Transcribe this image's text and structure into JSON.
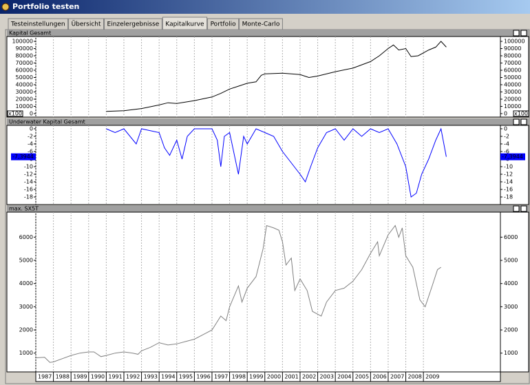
{
  "window": {
    "title": "Portfolio testen"
  },
  "tabs": [
    "Testeinstellungen",
    "Übersicht",
    "Einzelergebnisse",
    "Kapitalkurve",
    "Portfolio",
    "Monte-Carlo"
  ],
  "active_tab": 3,
  "chart_data": [
    {
      "type": "line",
      "title": "Kapital Gesamt",
      "scale_note": "x100",
      "color": "#000000",
      "xlim": [
        1987,
        2013.37
      ],
      "ylim": [
        -4800,
        106700
      ],
      "yticks": [
        0,
        10000,
        20000,
        30000,
        40000,
        50000,
        60000,
        70000,
        80000,
        90000,
        100000
      ],
      "x": [
        1991,
        1992,
        1993,
        1994,
        1994.5,
        1995,
        1996,
        1997,
        1997.5,
        1998,
        1998.5,
        1999,
        1999.5,
        1999.8,
        2000,
        2001,
        2002,
        2002.5,
        2003,
        2004,
        2005,
        2006,
        2006.5,
        2007,
        2007.3,
        2007.6,
        2008,
        2008.3,
        2008.7,
        2009.3,
        2009.7,
        2010,
        2010.3
      ],
      "values": [
        3000,
        4000,
        7000,
        12000,
        15000,
        14000,
        18000,
        23000,
        28000,
        34000,
        38000,
        42000,
        44000,
        53000,
        55000,
        56000,
        54000,
        50000,
        52000,
        58000,
        63000,
        72000,
        80000,
        90000,
        95000,
        88000,
        90000,
        79000,
        80000,
        88000,
        92000,
        100000,
        92000
      ]
    },
    {
      "type": "line",
      "title": "Underwater Kapital Gesamt",
      "color": "#0000ff",
      "marker_value": -7.3944,
      "marker_label": "-7,3944",
      "xlim": [
        1987,
        2013.37
      ],
      "ylim": [
        -20,
        0.9
      ],
      "yticks": [
        0,
        -2,
        -4,
        -6,
        -8,
        -10,
        -12,
        -14,
        -16,
        -18
      ],
      "x": [
        1991,
        1991.5,
        1992,
        1992.7,
        1993,
        1994,
        1994.3,
        1994.6,
        1995,
        1995.3,
        1995.6,
        1996,
        1997,
        1997.3,
        1997.5,
        1997.7,
        1998,
        1998.5,
        1998.8,
        1999,
        1999.5,
        2000,
        2000.5,
        2001,
        2001.5,
        2002,
        2002.3,
        2002.6,
        2003,
        2003.5,
        2004,
        2004.5,
        2005,
        2005.5,
        2006,
        2006.5,
        2007,
        2007.5,
        2008,
        2008.3,
        2008.6,
        2008.9,
        2009.3,
        2009.7,
        2010,
        2010.3
      ],
      "values": [
        0,
        -1,
        0,
        -4,
        0,
        -1,
        -5,
        -7,
        -3,
        -8,
        -2,
        0,
        0,
        -3,
        -10,
        -2,
        -1,
        -12,
        -2,
        -4,
        0,
        -1,
        -2,
        -6,
        -9,
        -12,
        -14,
        -10,
        -5,
        -1,
        0,
        -3,
        0,
        -2,
        0,
        -1,
        0,
        -4,
        -10,
        -18,
        -17,
        -12,
        -8,
        -3,
        0,
        -7.3944
      ]
    },
    {
      "type": "line",
      "title": "max. SX5T",
      "color": "#808080",
      "xlim": [
        1987,
        2013.37
      ],
      "ylim": [
        190,
        7080
      ],
      "yticks": [
        1000,
        2000,
        3000,
        4000,
        5000,
        6000
      ],
      "xticks": [
        1987,
        1988,
        1989,
        1990,
        1991,
        1992,
        1993,
        1994,
        1995,
        1996,
        1997,
        1998,
        1999,
        2000,
        2001,
        2002,
        2003,
        2004,
        2005,
        2006,
        2007,
        2008,
        2009
      ],
      "x": [
        1987,
        1987.5,
        1987.8,
        1988,
        1988.5,
        1989,
        1989.5,
        1990,
        1990.3,
        1990.7,
        1991,
        1991.5,
        1992,
        1992.5,
        1992.8,
        1993,
        1993.5,
        1994,
        1994.5,
        1995,
        1995.5,
        1996,
        1996.5,
        1997,
        1997.5,
        1997.8,
        1998,
        1998.5,
        1998.7,
        1999,
        1999.5,
        1999.9,
        2000.1,
        2000.5,
        2000.8,
        2001,
        2001.2,
        2001.5,
        2001.7,
        2002,
        2002.4,
        2002.7,
        2003.2,
        2003.5,
        2004,
        2004.5,
        2005,
        2005.5,
        2006,
        2006.4,
        2006.5,
        2007,
        2007.4,
        2007.6,
        2007.8,
        2008,
        2008.4,
        2008.8,
        2009.1,
        2009.5,
        2009.8,
        2010
      ],
      "values": [
        800,
        820,
        600,
        620,
        760,
        900,
        1000,
        1050,
        1050,
        850,
        900,
        1000,
        1050,
        1000,
        950,
        1100,
        1250,
        1450,
        1350,
        1400,
        1500,
        1600,
        1800,
        2000,
        2600,
        2400,
        3000,
        3900,
        3200,
        3800,
        4300,
        5500,
        6500,
        6400,
        6300,
        5800,
        4800,
        5100,
        3700,
        4200,
        3700,
        2800,
        2600,
        3200,
        3700,
        3800,
        4100,
        4600,
        5300,
        5800,
        5200,
        6100,
        6500,
        6000,
        6400,
        5200,
        4700,
        3300,
        3000,
        3900,
        4600,
        4700
      ]
    }
  ]
}
